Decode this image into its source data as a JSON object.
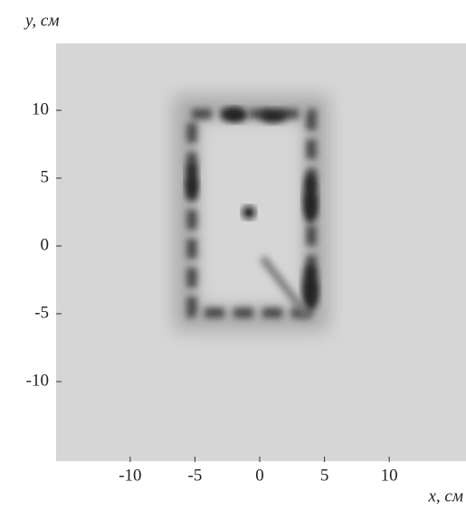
{
  "chart_data": {
    "type": "image",
    "xlabel": "x, см",
    "ylabel": "y, см",
    "xlim": [
      -16,
      16
    ],
    "ylim": [
      -16,
      15
    ],
    "xticks": [
      -10,
      -5,
      0,
      5,
      10
    ],
    "yticks": [
      -10,
      -5,
      0,
      5,
      10
    ]
  }
}
